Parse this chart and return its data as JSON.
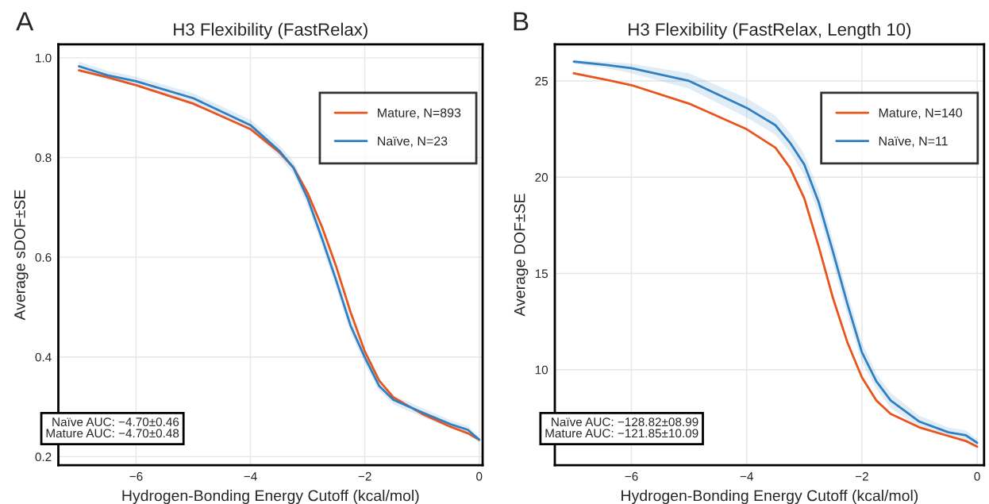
{
  "chart_data": [
    {
      "type": "line",
      "title": "H3 Flexibility (FastRelax)",
      "xlabel": "Hydrogen-Bonding Energy Cutoff (kcal/mol)",
      "ylabel": "Average sDOF±SE",
      "annotations": [
        "A",
        "Naïve AUC: −4.70±0.46",
        "Mature AUC: −4.70±0.48"
      ],
      "x": [
        -7,
        -6.5,
        -6,
        -5,
        -4,
        -3.5,
        -3.25,
        -3,
        -2.75,
        -2.5,
        -2.25,
        -2,
        -1.75,
        -1.5,
        -1,
        -0.5,
        -0.2,
        0
      ],
      "series": [
        {
          "name": "Mature, N=893",
          "color": "#e8541c",
          "values": [
            0.975,
            0.961,
            0.945,
            0.908,
            0.857,
            0.811,
            0.78,
            0.729,
            0.661,
            0.581,
            0.49,
            0.411,
            0.353,
            0.319,
            0.286,
            0.26,
            0.247,
            0.234
          ]
        },
        {
          "name": "Naïve, N=23",
          "color": "#2f7fc1",
          "values": [
            0.983,
            0.965,
            0.953,
            0.919,
            0.865,
            0.814,
            0.78,
            0.718,
            0.638,
            0.553,
            0.463,
            0.399,
            0.342,
            0.314,
            0.289,
            0.265,
            0.254,
            0.234
          ],
          "lower": [
            0.974,
            0.956,
            0.944,
            0.909,
            0.854,
            0.802,
            0.767,
            0.704,
            0.623,
            0.538,
            0.449,
            0.387,
            0.332,
            0.305,
            0.28,
            0.257,
            0.246,
            0.228
          ],
          "upper": [
            0.992,
            0.974,
            0.962,
            0.929,
            0.876,
            0.826,
            0.793,
            0.732,
            0.653,
            0.568,
            0.477,
            0.411,
            0.352,
            0.323,
            0.298,
            0.273,
            0.262,
            0.24
          ]
        }
      ],
      "xlim": [
        -7.36,
        0.06
      ],
      "ylim": [
        0.183,
        1.027
      ],
      "xticks": [
        {
          "value": -6,
          "label": "−6"
        },
        {
          "value": -4,
          "label": "−4"
        },
        {
          "value": -2,
          "label": "−2"
        },
        0
      ],
      "yticks": [
        0.2,
        0.4,
        0.6,
        0.8,
        {
          "value": 1,
          "label": "1.0"
        }
      ],
      "grid": true,
      "legend": "top right",
      "marker": "none",
      "line_style": "solid"
    },
    {
      "type": "line",
      "title": "H3 Flexibility (FastRelax, Length 10)",
      "xlabel": "Hydrogen-Bonding Energy Cutoff (kcal/mol)",
      "ylabel": "Average DOF±SE",
      "annotations": [
        "B",
        "Naïve AUC: −128.82±08.99",
        "Mature AUC: −121.85±10.09"
      ],
      "x": [
        -7,
        -6.5,
        -6,
        -5,
        -4,
        -3.5,
        -3.25,
        -3,
        -2.75,
        -2.5,
        -2.25,
        -2,
        -1.75,
        -1.5,
        -1,
        -0.5,
        -0.2,
        0
      ],
      "series": [
        {
          "name": "Mature, N=140",
          "color": "#e8541c",
          "values": [
            25.4,
            25.1,
            24.78,
            23.82,
            22.49,
            21.53,
            20.5,
            18.9,
            16.4,
            13.7,
            11.4,
            9.6,
            8.4,
            7.7,
            7.0,
            6.56,
            6.3,
            6.0
          ]
        },
        {
          "name": "Naïve, N=11",
          "color": "#2f7fc1",
          "values": [
            26.0,
            25.85,
            25.66,
            25.0,
            23.6,
            22.7,
            21.8,
            20.66,
            18.7,
            16.1,
            13.4,
            10.9,
            9.4,
            8.4,
            7.3,
            6.75,
            6.6,
            6.2
          ],
          "lower": [
            25.9,
            25.7,
            25.4,
            24.6,
            23.1,
            22.2,
            21.3,
            20.1,
            18.1,
            15.5,
            12.8,
            10.4,
            9.0,
            8.0,
            7.0,
            6.5,
            6.35,
            6.0
          ],
          "upper": [
            26.1,
            26.0,
            25.9,
            25.4,
            24.1,
            23.2,
            22.3,
            21.2,
            19.3,
            16.7,
            14.0,
            11.4,
            9.8,
            8.8,
            7.6,
            7.0,
            6.85,
            6.4
          ]
        }
      ],
      "xlim": [
        -7.33,
        0.12
      ],
      "ylim": [
        5.04,
        26.9
      ],
      "xticks": [
        {
          "value": -6,
          "label": "−6"
        },
        {
          "value": -4,
          "label": "−4"
        },
        {
          "value": -2,
          "label": "−2"
        },
        0
      ],
      "yticks": [
        10,
        15,
        20,
        25
      ],
      "grid": true,
      "legend": "top right",
      "marker": "none",
      "line_style": "solid"
    }
  ]
}
